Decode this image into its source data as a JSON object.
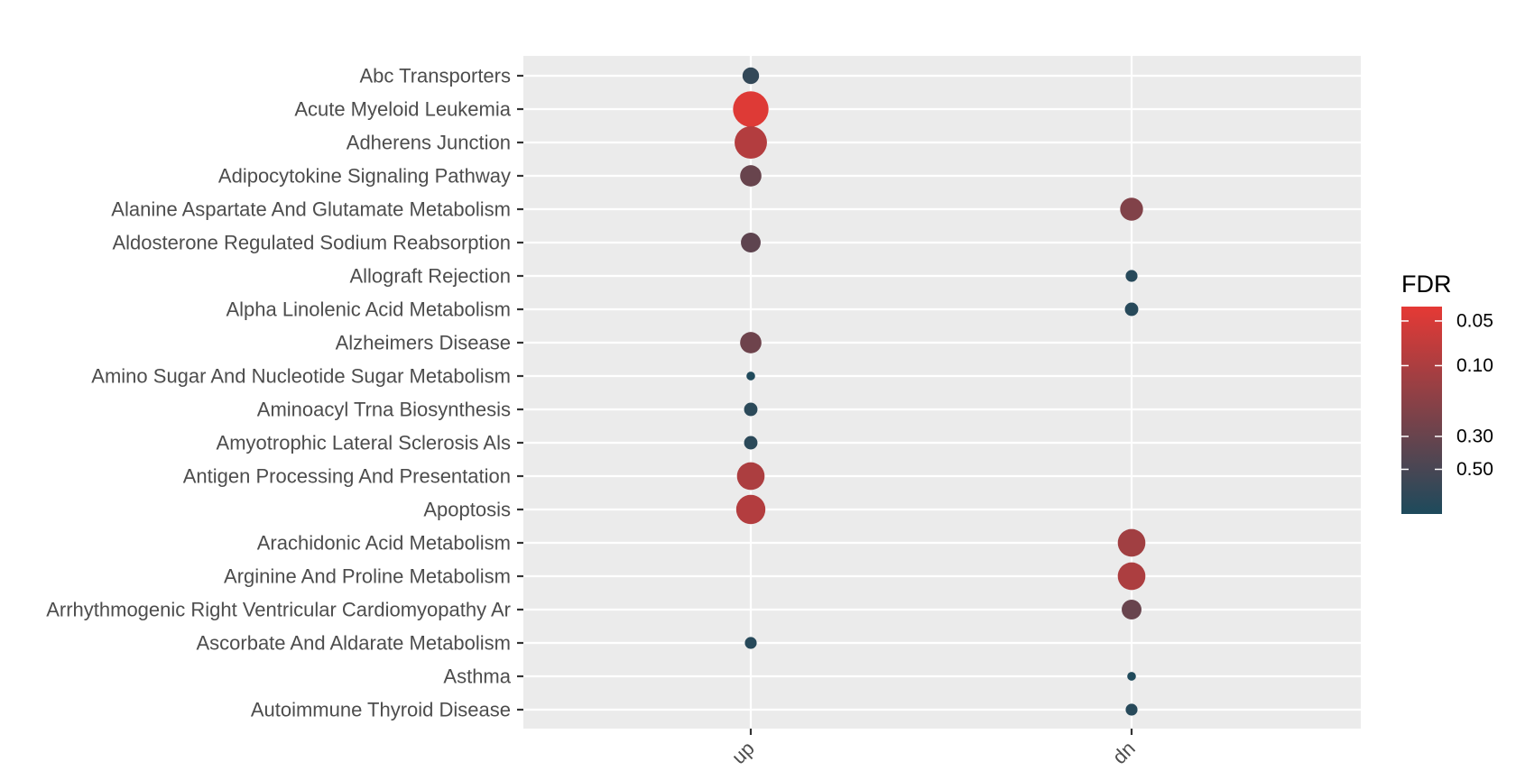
{
  "chart_data": {
    "type": "scatter",
    "title": "",
    "xlabel": "",
    "ylabel": "",
    "x_categories": [
      "up",
      "dn"
    ],
    "y_categories": [
      "Abc Transporters",
      "Acute Myeloid Leukemia",
      "Adherens Junction",
      "Adipocytokine Signaling Pathway",
      "Alanine Aspartate And Glutamate Metabolism",
      "Aldosterone Regulated Sodium Reabsorption",
      "Allograft Rejection",
      "Alpha Linolenic Acid Metabolism",
      "Alzheimers Disease",
      "Amino Sugar And Nucleotide Sugar Metabolism",
      "Aminoacyl Trna Biosynthesis",
      "Amyotrophic Lateral Sclerosis Als",
      "Antigen Processing And Presentation",
      "Apoptosis",
      "Arachidonic Acid Metabolism",
      "Arginine And Proline Metabolism",
      "Arrhythmogenic Right Ventricular Cardiomyopathy Ar",
      "Ascorbate And Aldarate Metabolism",
      "Asthma",
      "Autoimmune Thyroid Disease"
    ],
    "points": [
      {
        "y": "Abc Transporters",
        "x": "up",
        "fdr": 0.7,
        "size": 4
      },
      {
        "y": "Acute Myeloid Leukemia",
        "x": "up",
        "fdr": 0.045,
        "size": 10
      },
      {
        "y": "Adherens Junction",
        "x": "up",
        "fdr": 0.09,
        "size": 9
      },
      {
        "y": "Adipocytokine Signaling Pathway",
        "x": "up",
        "fdr": 0.3,
        "size": 5.5
      },
      {
        "y": "Alanine Aspartate And Glutamate Metabolism",
        "x": "dn",
        "fdr": 0.2,
        "size": 6
      },
      {
        "y": "Aldosterone Regulated Sodium Reabsorption",
        "x": "up",
        "fdr": 0.35,
        "size": 5
      },
      {
        "y": "Allograft Rejection",
        "x": "dn",
        "fdr": 0.85,
        "size": 2.5
      },
      {
        "y": "Alpha Linolenic Acid Metabolism",
        "x": "dn",
        "fdr": 0.85,
        "size": 3
      },
      {
        "y": "Alzheimers Disease",
        "x": "up",
        "fdr": 0.27,
        "size": 5.5
      },
      {
        "y": "Amino Sugar And Nucleotide Sugar Metabolism",
        "x": "up",
        "fdr": 0.95,
        "size": 1.5
      },
      {
        "y": "Aminoacyl Trna Biosynthesis",
        "x": "up",
        "fdr": 0.8,
        "size": 3
      },
      {
        "y": "Amyotrophic Lateral Sclerosis Als",
        "x": "up",
        "fdr": 0.8,
        "size": 3
      },
      {
        "y": "Antigen Processing And Presentation",
        "x": "up",
        "fdr": 0.1,
        "size": 7.5
      },
      {
        "y": "Apoptosis",
        "x": "up",
        "fdr": 0.09,
        "size": 8
      },
      {
        "y": "Arachidonic Acid Metabolism",
        "x": "dn",
        "fdr": 0.12,
        "size": 7.5
      },
      {
        "y": "Arginine And Proline Metabolism",
        "x": "dn",
        "fdr": 0.1,
        "size": 7.5
      },
      {
        "y": "Arrhythmogenic Right Ventricular Cardiomyopathy Ar",
        "x": "dn",
        "fdr": 0.3,
        "size": 5
      },
      {
        "y": "Ascorbate And Aldarate Metabolism",
        "x": "up",
        "fdr": 0.85,
        "size": 2.5
      },
      {
        "y": "Asthma",
        "x": "dn",
        "fdr": 0.95,
        "size": 1.5
      },
      {
        "y": "Autoimmune Thyroid Disease",
        "x": "dn",
        "fdr": 0.85,
        "size": 2.5
      }
    ],
    "legend": {
      "title": "FDR",
      "placement": "right",
      "breaks": [
        0.05,
        0.1,
        0.3,
        0.5
      ],
      "labels": [
        "0.05",
        "0.10",
        "0.30",
        "0.50"
      ],
      "scale": "log",
      "range": [
        0.04,
        1.0
      ],
      "color_low_fdr": "#e53935",
      "color_high_fdr": "#1d4a5c"
    },
    "grid": true,
    "panel_background": "#ebebeb",
    "gridline_color": "#ffffff"
  }
}
